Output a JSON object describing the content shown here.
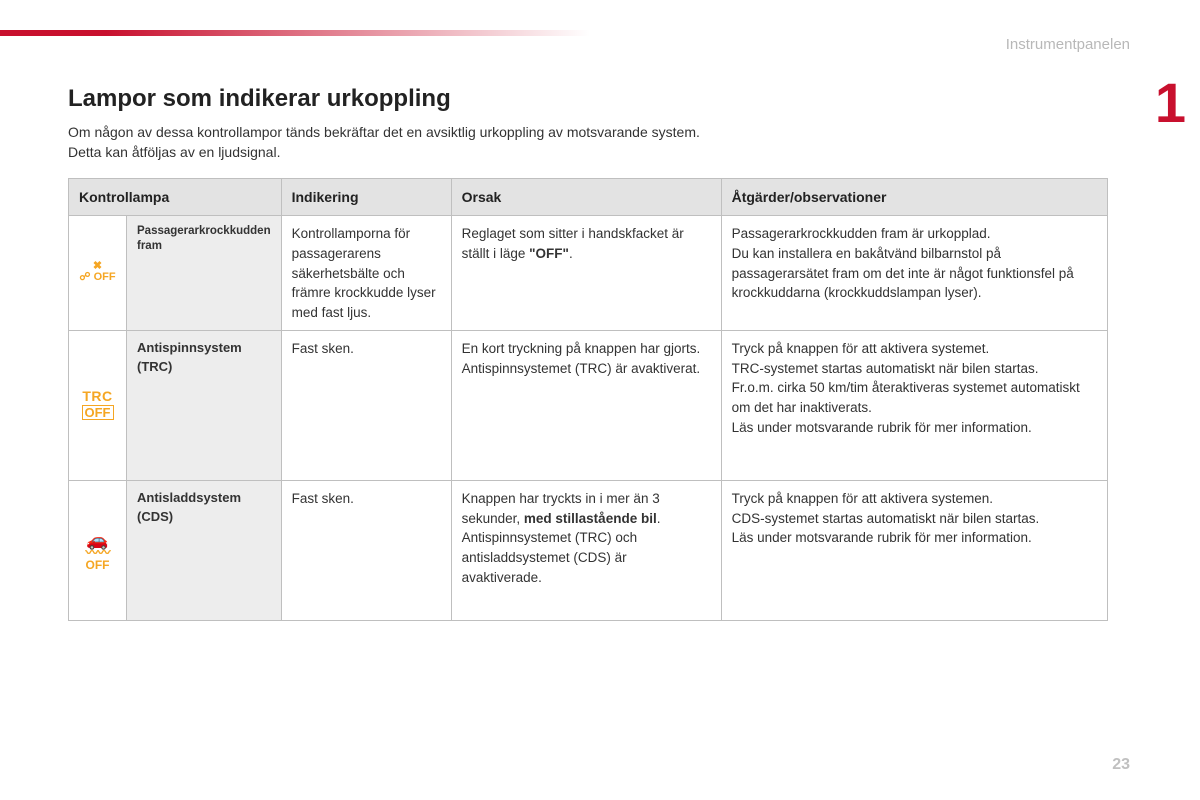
{
  "colors": {
    "accent": "#c8102e",
    "orange": "#f5a623",
    "header_text": "#b8b8b8",
    "border": "#bfbfbf",
    "th_bg": "#e3e3e3",
    "lamp_bg": "#ededed",
    "text": "#333333"
  },
  "header": {
    "section_label": "Instrumentpanelen",
    "chapter_number": "1",
    "page_number": "23"
  },
  "title": "Lampor som indikerar urkoppling",
  "intro_line1": "Om någon av dessa kontrollampor tänds bekräftar det en avsiktlig urkoppling av motsvarande system.",
  "intro_line2": "Detta kan åtföljas av en ljudsignal.",
  "table": {
    "columns": {
      "lamp": "Kontrollampa",
      "indication": "Indikering",
      "cause": "Orsak",
      "actions": "Åtgärder/observationer"
    },
    "rows": [
      {
        "icon": "airbag-off",
        "lamp_name": "Passagerarkrockkudden fram",
        "indication": "Kontrollamporna för passagerarens säkerhetsbälte och främre krockkudde lyser med fast ljus.",
        "cause_pre": "Reglaget som sitter i handskfacket är ställt i läge ",
        "cause_bold": "\"OFF\"",
        "cause_post": ".",
        "actions": "Passagerarkrockkudden fram är urkopplad.\nDu kan installera en bakåtvänd bilbarnstol på passagerarsätet fram om det inte är något funktionsfel på krockkuddarna (krockkuddslampan lyser)."
      },
      {
        "icon": "trc-off",
        "lamp_name": "Antispinnsystem (TRC)",
        "indication": "Fast sken.",
        "cause": "En kort tryckning på knappen har gjorts.\nAntispinnsystemet (TRC) är avaktiverat.",
        "actions": "Tryck på knappen för att aktivera systemet.\nTRC-systemet startas automatiskt när bilen startas.\nFr.o.m. cirka 50 km/tim återaktiveras systemet automatiskt om det har inaktiverats.\nLäs under motsvarande rubrik för mer information."
      },
      {
        "icon": "cds-off",
        "lamp_name": "Antisladdsystem (CDS)",
        "indication": "Fast sken.",
        "cause_pre": "Knappen har tryckts in i mer än 3 sekunder, ",
        "cause_bold": "med stillastående bil",
        "cause_post": ".\nAntispinnsystemet (TRC) och antisladdsystemet (CDS) är avaktiverade.",
        "actions": "Tryck på knappen för att aktivera systemen.\nCDS-systemet startas automatiskt när bilen startas.\nLäs under motsvarande rubrik för mer information."
      }
    ]
  }
}
